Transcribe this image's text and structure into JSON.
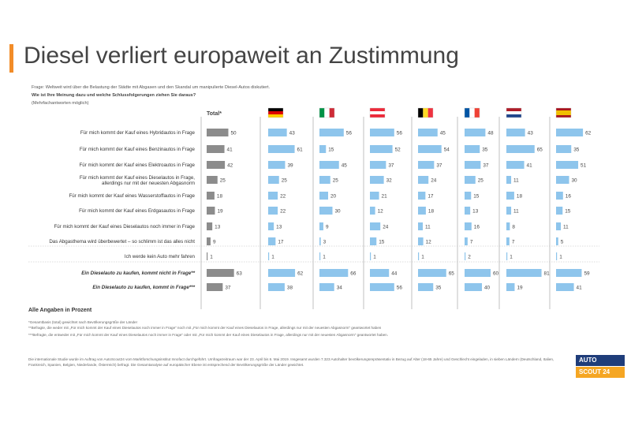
{
  "title": "Diesel verliert europaweit an Zustimmung",
  "question": {
    "line1": "Frage: Weltweit wird über die Belastung der Städte mit Abgasen und den Skandal um manipulierte Diesel-Autos diskutiert.",
    "line2": "Wie ist Ihre Meinung dazu und welche Schlussfolgerungen ziehen Sie daraus?",
    "line3": "(Mehrfachantworten möglich)"
  },
  "all_values_note": "Alle Angaben in Prozent",
  "footnotes": [
    "*Gesamtbasis (total) gewichtet nach Bevölkerungsgröße der Länder",
    "**Befragte, die weder mit „Für mich kommt der Kauf eines Dieselautos noch immer in Frage“ noch mit „Für mich kommt der Kauf eines Dieselautos in Frage, allerdings nur mit der neuesten Abgasnorm“ geantwortet haben",
    "***Befragte, die entweder mit „Für mich kommt der Kauf eines Dieselautos noch immer in Frage“ oder mit „Für mich kommt der Kauf eines Dieselautos in Frage, allerdings nur mit der neuesten Abgasnorm“ geantwortet haben."
  ],
  "study_note": "Die internationale Studie wurde im Auftrag von AutoScout24 vom Marktforschungsinstitut Innofact durchgeführt. Umfragezeitraum war der 23. April bis 6. Mai 2019. Insgesamt wurden 7.323 Autohalter bevölkerungsrepräsentativ in Bezug auf Alter (18-65 Jahre) und Geschlecht eingeladen, in sieben Ländern (Deutschland, Italien, Frankreich, Spanien, Belgien, Niederlande, Österreich) befragt. Die Gesamtanalyse auf europäischer Ebene ist entsprechend der Bevölkerungsgröße der Länder gewichtet.",
  "logo": {
    "top": "AUTO",
    "bottom": "SCOUT 24"
  },
  "colors": {
    "total_bar": "#8c8c8c",
    "country_bar": "#8ec5ec",
    "accent": "#f28c28",
    "divider": "#999999"
  },
  "chart_data": {
    "type": "bar",
    "orientation": "horizontal",
    "columns": [
      {
        "name": "Total*",
        "flag": "total"
      },
      {
        "name": "",
        "flag": "de"
      },
      {
        "name": "",
        "flag": "it"
      },
      {
        "name": "",
        "flag": "at"
      },
      {
        "name": "",
        "flag": "be"
      },
      {
        "name": "",
        "flag": "fr"
      },
      {
        "name": "",
        "flag": "nl"
      },
      {
        "name": "",
        "flag": "es"
      }
    ],
    "rows": [
      {
        "label": "Für mich kommt der Kauf eines Hybridautos in Frage",
        "values": [
          50,
          43,
          56,
          56,
          45,
          48,
          43,
          62
        ]
      },
      {
        "label": "Für mich kommt der Kauf eines Benzinautos in Frage",
        "values": [
          41,
          61,
          15,
          52,
          54,
          35,
          65,
          35
        ]
      },
      {
        "label": "Für mich kommt der Kauf eines Elektroautos in Frage",
        "values": [
          42,
          39,
          45,
          37,
          37,
          37,
          41,
          51
        ]
      },
      {
        "label": "Für mich kommt der Kauf eines Dieselautos in Frage, allerdings nur mit der neuesten Abgasnorm",
        "values": [
          25,
          25,
          25,
          32,
          24,
          25,
          11,
          30
        ]
      },
      {
        "label": "Für mich kommt der Kauf eines Wasserstoffautos in Frage",
        "values": [
          18,
          22,
          20,
          21,
          17,
          15,
          18,
          16
        ]
      },
      {
        "label": "Für mich kommt der Kauf eines Erdgasautos in Frage",
        "values": [
          19,
          22,
          30,
          12,
          18,
          13,
          11,
          15
        ]
      },
      {
        "label": "Für mich kommt der Kauf eines Dieselautos noch immer in Frage",
        "values": [
          13,
          13,
          9,
          24,
          11,
          16,
          8,
          11
        ]
      },
      {
        "label": "Das Abgasthema wird überbewertet – so schlimm ist das alles nicht",
        "values": [
          9,
          17,
          3,
          15,
          12,
          7,
          7,
          5
        ]
      },
      {
        "label": "Ich werde kein Auto mehr fahren",
        "values": [
          1,
          1,
          1,
          1,
          1,
          2,
          1,
          1
        ]
      },
      {
        "label": "Ein Dieselauto zu kaufen, kommt nicht in Frage**",
        "values": [
          63,
          62,
          66,
          44,
          65,
          60,
          81,
          59
        ],
        "emphasis": true
      },
      {
        "label": "Ein Dieselauto zu kaufen, kommt in Frage***",
        "values": [
          37,
          38,
          34,
          56,
          35,
          40,
          19,
          41
        ],
        "emphasis": true
      }
    ],
    "xlim": [
      0,
      100
    ]
  }
}
